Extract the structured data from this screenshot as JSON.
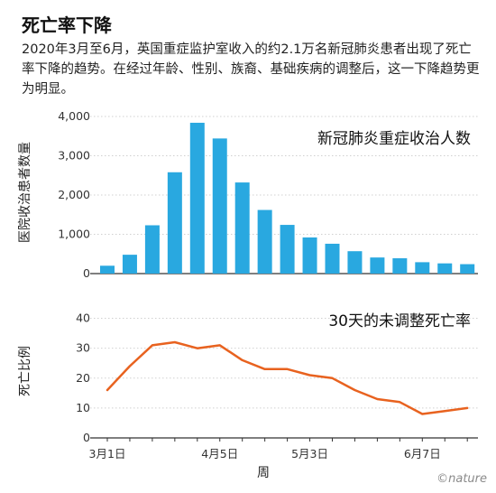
{
  "title": "死亡率下降",
  "subtitle": "2020年3月至6月，英国重症监护室收入的约2.1万名新冠肺炎患者出现了死亡率下降的趋势。在经过年龄、性别、族裔、基础疾病的调整后，这一下降趋势更为明显。",
  "credit": "©nature",
  "colors": {
    "bar": "#29a8e0",
    "line": "#e8621f",
    "grid": "#d0d0d0",
    "axis": "#333333"
  },
  "chart_data": [
    {
      "type": "bar",
      "title": "新冠肺炎重症收治人数",
      "ylabel": "医院收治患者数量",
      "ylim": [
        0,
        4000
      ],
      "yticks": [
        "0",
        "1,000",
        "2,000",
        "3,000",
        "4,000"
      ],
      "ytick_values": [
        0,
        1000,
        2000,
        3000,
        4000
      ],
      "grid": "horizontal",
      "values": [
        200,
        480,
        1230,
        2580,
        3840,
        3440,
        2320,
        1620,
        1240,
        920,
        760,
        570,
        410,
        390,
        290,
        260,
        240
      ]
    },
    {
      "type": "line",
      "title": "30天的未调整死亡率",
      "ylabel": "死亡比例",
      "xlabel": "周",
      "ylim": [
        0,
        45
      ],
      "yticks": [
        "0",
        "10",
        "20",
        "30",
        "40"
      ],
      "ytick_values": [
        0,
        10,
        20,
        30,
        40
      ],
      "grid": "horizontal",
      "xtick_labels": [
        {
          "label": "3月1日",
          "week": 0
        },
        {
          "label": "4月5日",
          "week": 5
        },
        {
          "label": "5月3日",
          "week": 9
        },
        {
          "label": "6月7日",
          "week": 14
        }
      ],
      "values": [
        16,
        24,
        31,
        32,
        30,
        31,
        26,
        23,
        23,
        21,
        20,
        16,
        13,
        12,
        8,
        9,
        10
      ]
    }
  ]
}
